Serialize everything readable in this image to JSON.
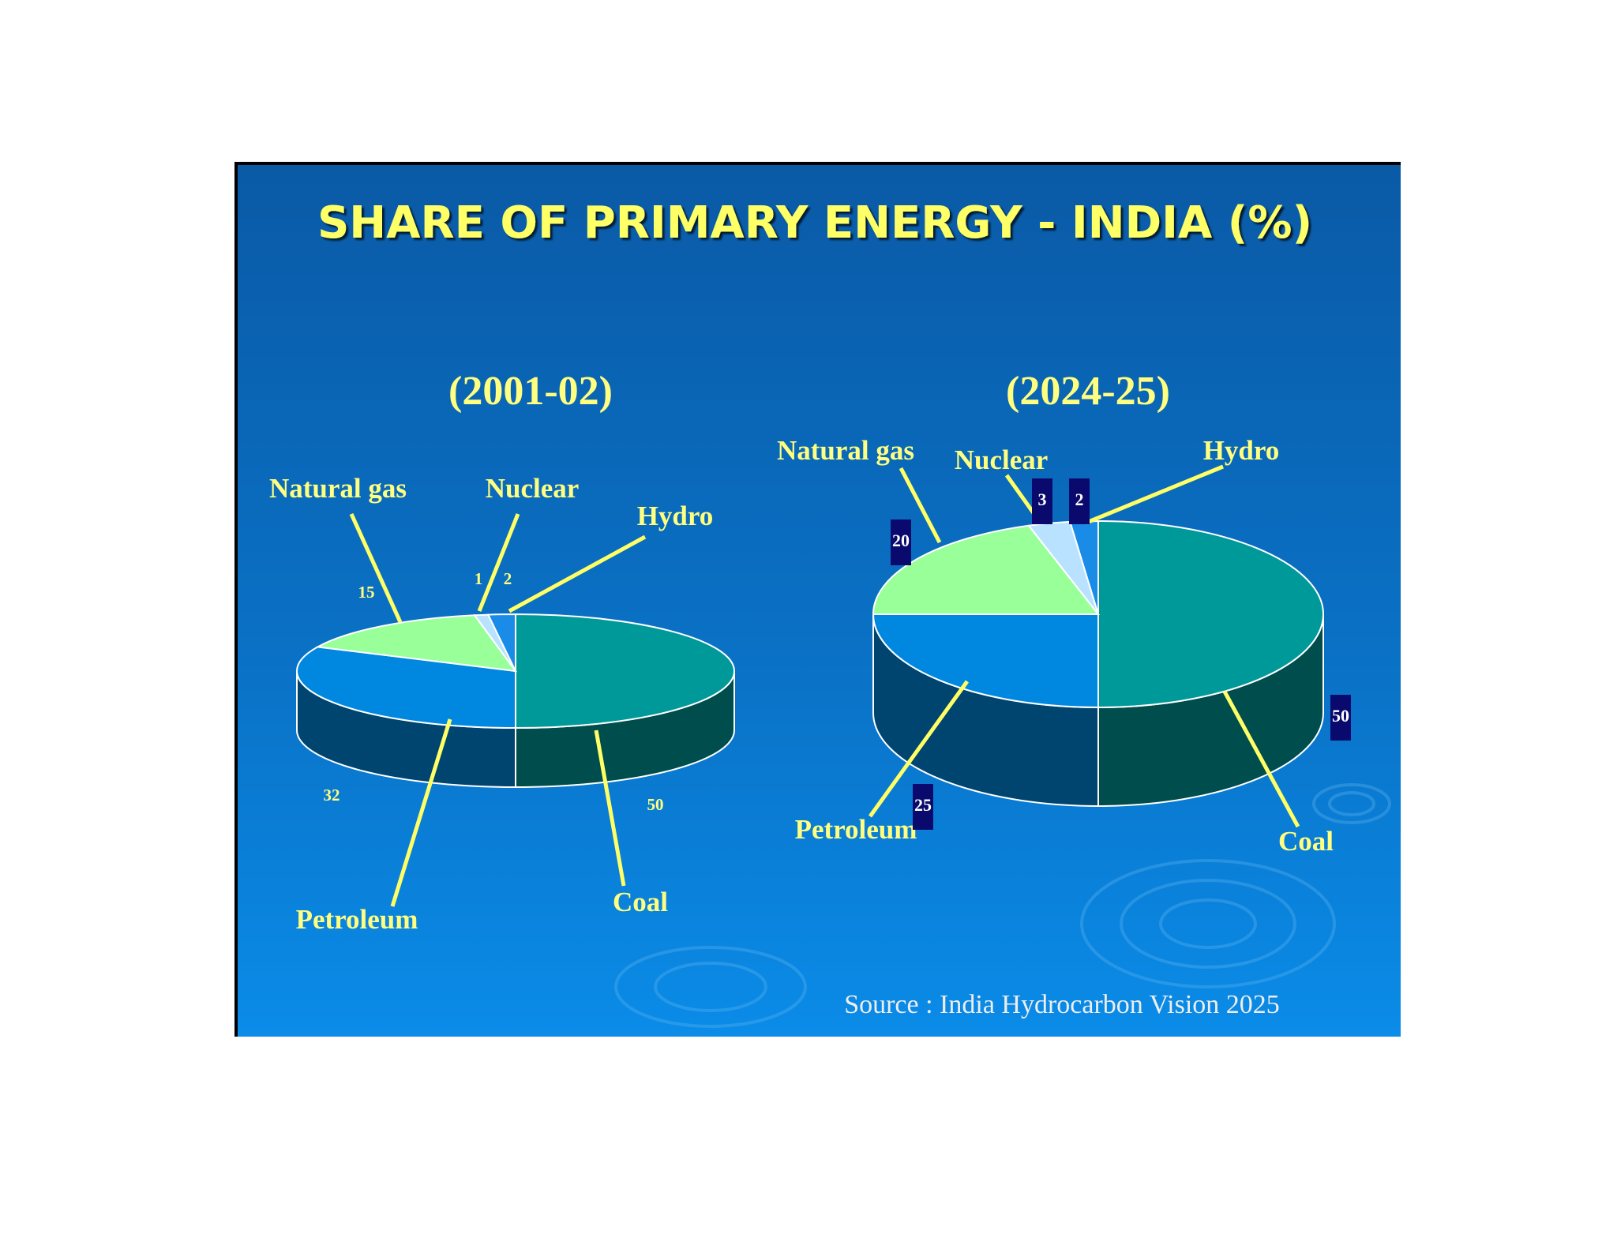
{
  "title": "SHARE OF PRIMARY ENERGY - INDIA (%)",
  "source": "Source : India Hydrocarbon Vision 2025",
  "chart_data": [
    {
      "type": "pie",
      "title": "(2001-02)",
      "categories": [
        "Coal",
        "Petroleum",
        "Natural gas",
        "Nuclear",
        "Hydro"
      ],
      "values": [
        50,
        32,
        15,
        1,
        2
      ],
      "colors": [
        "#009999",
        "#0088e0",
        "#99ff99",
        "#b8e2ff",
        "#1a8ce8"
      ]
    },
    {
      "type": "pie",
      "title": "(2024-25)",
      "categories": [
        "Coal",
        "Petroleum",
        "Natural gas",
        "Nuclear",
        "Hydro"
      ],
      "values": [
        50,
        25,
        20,
        3,
        2
      ],
      "colors": [
        "#009999",
        "#0088e0",
        "#99ff99",
        "#b8e2ff",
        "#1a8ce8"
      ]
    }
  ]
}
